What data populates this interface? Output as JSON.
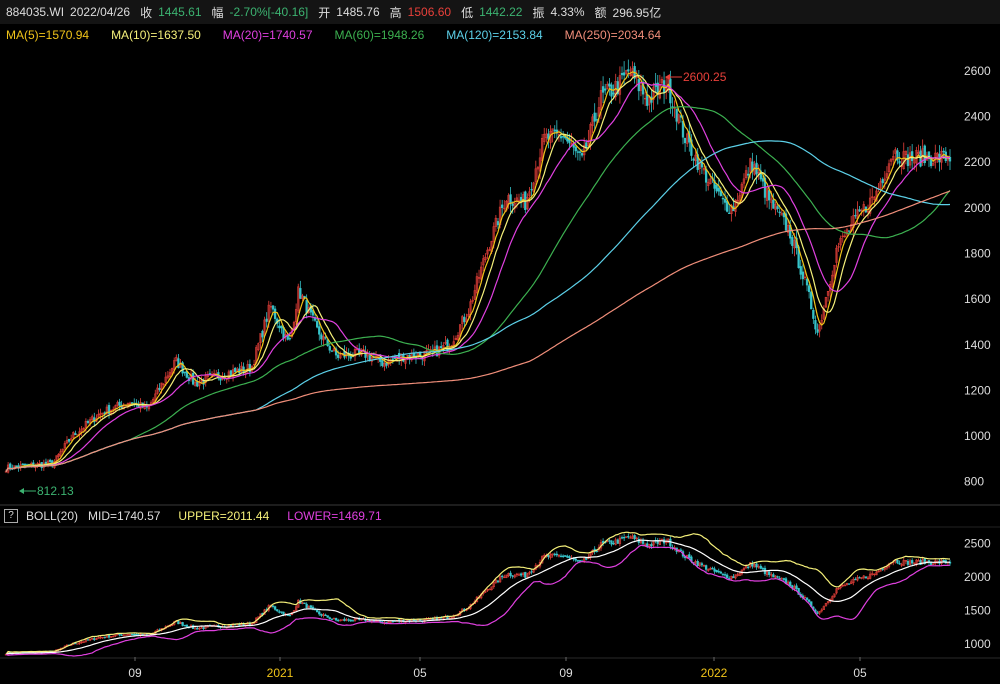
{
  "header": {
    "code": "884035.WI",
    "date": "2022/04/26",
    "close_label": "收",
    "close_value": "1445.61",
    "change_label": "幅",
    "change_value": "-2.70%[-40.16]",
    "open_label": "开",
    "open_value": "1485.76",
    "high_label": "高",
    "high_value": "1506.60",
    "low_label": "低",
    "low_value": "1442.22",
    "amp_label": "振",
    "amp_value": "4.33%",
    "amount_label": "额",
    "amount_value": "296.95亿",
    "colors": {
      "down": "#3cb371",
      "up": "#e8403a",
      "neutral": "#dddddd"
    }
  },
  "ma_legend": [
    {
      "label": "MA(5)=1570.94",
      "color": "#f0c419"
    },
    {
      "label": "MA(10)=1637.50",
      "color": "#f5f07a"
    },
    {
      "label": "MA(20)=1740.57",
      "color": "#e040e0"
    },
    {
      "label": "MA(60)=1948.26",
      "color": "#3cb050"
    },
    {
      "label": "MA(120)=2153.84",
      "color": "#5cd0e8"
    },
    {
      "label": "MA(250)=2034.64",
      "color": "#f08e7a"
    }
  ],
  "boll_legend": {
    "help": "?",
    "title": "BOLL(20)",
    "mid": "MID=1740.57",
    "upper": "UPPER=2011.44",
    "lower": "LOWER=1469.71",
    "colors": {
      "mid": "#ffffff",
      "upper": "#f5f07a",
      "lower": "#e040e0"
    }
  },
  "annotations": {
    "high": "2600.25",
    "low": "812.13"
  },
  "chart_data": [
    {
      "type": "candlestick",
      "title": "",
      "ylim": [
        720,
        2700
      ],
      "y_ticks": [
        "800",
        "1000",
        "1200",
        "1400",
        "1600",
        "1800",
        "2000",
        "2200",
        "2400",
        "2600"
      ],
      "x_ticks": [
        "09",
        "2021",
        "05",
        "09",
        "2022",
        "05"
      ],
      "annotations": [
        {
          "label": "2600.25",
          "kind": "max",
          "x": "2021-12"
        },
        {
          "label": "812.13",
          "kind": "min",
          "x": "2020-07"
        }
      ],
      "close_path": [
        [
          0,
          860
        ],
        [
          0.05,
          880
        ],
        [
          0.07,
          1000
        ],
        [
          0.1,
          1100
        ],
        [
          0.13,
          1150
        ],
        [
          0.15,
          1120
        ],
        [
          0.18,
          1330
        ],
        [
          0.2,
          1230
        ],
        [
          0.23,
          1270
        ],
        [
          0.26,
          1300
        ],
        [
          0.28,
          1570
        ],
        [
          0.3,
          1400
        ],
        [
          0.31,
          1640
        ],
        [
          0.33,
          1460
        ],
        [
          0.35,
          1350
        ],
        [
          0.38,
          1360
        ],
        [
          0.4,
          1320
        ],
        [
          0.42,
          1350
        ],
        [
          0.45,
          1360
        ],
        [
          0.47,
          1400
        ],
        [
          0.49,
          1550
        ],
        [
          0.51,
          1820
        ],
        [
          0.53,
          2050
        ],
        [
          0.55,
          2020
        ],
        [
          0.57,
          2300
        ],
        [
          0.59,
          2320
        ],
        [
          0.61,
          2200
        ],
        [
          0.63,
          2480
        ],
        [
          0.65,
          2540
        ],
        [
          0.66,
          2600
        ],
        [
          0.68,
          2470
        ],
        [
          0.7,
          2550
        ],
        [
          0.72,
          2300
        ],
        [
          0.74,
          2150
        ],
        [
          0.76,
          2020
        ],
        [
          0.77,
          2000
        ],
        [
          0.79,
          2200
        ],
        [
          0.81,
          2020
        ],
        [
          0.83,
          1900
        ],
        [
          0.85,
          1620
        ],
        [
          0.86,
          1450
        ],
        [
          0.88,
          1820
        ],
        [
          0.9,
          1950
        ],
        [
          0.92,
          2050
        ],
        [
          0.94,
          2250
        ],
        [
          0.95,
          2220
        ]
      ],
      "series": [
        {
          "name": "MA(5)",
          "color": "#f0c419",
          "period": 5
        },
        {
          "name": "MA(10)",
          "color": "#f5f07a",
          "period": 10
        },
        {
          "name": "MA(20)",
          "color": "#e040e0",
          "period": 20
        },
        {
          "name": "MA(60)",
          "color": "#3cb050",
          "period": 60
        },
        {
          "name": "MA(120)",
          "color": "#5cd0e8",
          "period": 120
        },
        {
          "name": "MA(250)",
          "color": "#f08e7a",
          "period": 250
        }
      ],
      "grid": false
    },
    {
      "type": "candlestick",
      "title": "BOLL(20)",
      "ylim": [
        820,
        2700
      ],
      "y_ticks": [
        "1000",
        "1500",
        "2000",
        "2500"
      ],
      "x_ticks": [
        "09",
        "2021",
        "05",
        "09",
        "2022",
        "05"
      ],
      "series": [
        {
          "name": "MID",
          "color": "#ffffff"
        },
        {
          "name": "UPPER",
          "color": "#f5f07a"
        },
        {
          "name": "LOWER",
          "color": "#e040e0"
        }
      ],
      "grid": false
    }
  ]
}
